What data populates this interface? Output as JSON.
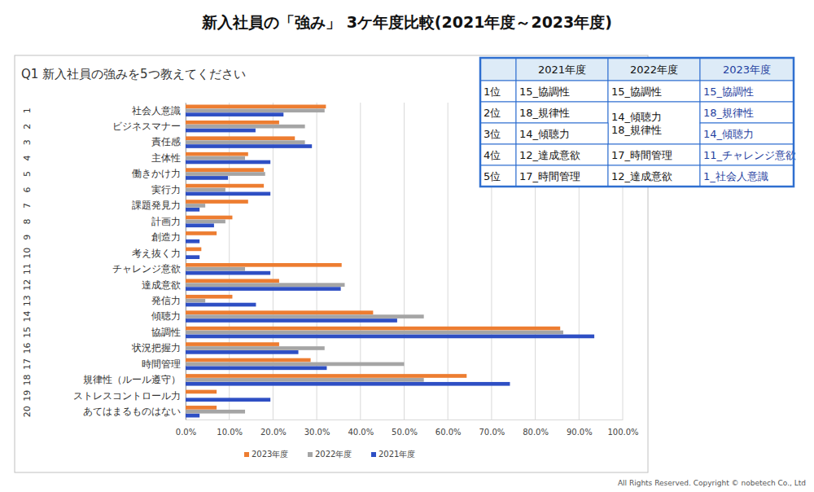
{
  "chart_data": {
    "type": "bar",
    "title": "新入社員の「強み」 3ケ年度比較(2021年度～2023年度)",
    "subtitle": "Q1 新入社員の強みを5つ教えてください",
    "orientation": "horizontal",
    "category_numbers": [
      1,
      2,
      3,
      4,
      5,
      6,
      7,
      8,
      9,
      10,
      11,
      12,
      13,
      14,
      15,
      16,
      17,
      18,
      19,
      20
    ],
    "categories": [
      "社会人意識",
      "ビジネスマナー",
      "責任感",
      "主体性",
      "働きかけ力",
      "実行力",
      "課題発見力",
      "計画力",
      "創造力",
      "考え抜く力",
      "チャレンジ意欲",
      "達成意欲",
      "発信力",
      "傾聴力",
      "協調性",
      "状況把握力",
      "時間管理",
      "規律性（ルール遵守）",
      "ストレスコントロール力",
      "あてはまるものはない"
    ],
    "series": [
      {
        "name": "2023年度",
        "color": "#ED7D31",
        "values": [
          32.1,
          21.4,
          25.0,
          14.3,
          17.9,
          17.9,
          14.3,
          10.7,
          7.1,
          3.6,
          35.7,
          21.4,
          10.7,
          42.9,
          85.7,
          21.4,
          28.6,
          64.3,
          7.1,
          7.1
        ]
      },
      {
        "name": "2022年度",
        "color": "#A5A5A5",
        "values": [
          31.8,
          27.3,
          27.3,
          13.6,
          18.2,
          9.1,
          4.5,
          9.1,
          0,
          0,
          13.6,
          36.4,
          4.5,
          54.5,
          86.4,
          31.8,
          50.0,
          54.5,
          0,
          13.6
        ]
      },
      {
        "name": "2021年度",
        "color": "#2E4FC4",
        "values": [
          22.4,
          16.0,
          28.9,
          19.4,
          9.7,
          19.4,
          3.2,
          6.5,
          3.2,
          3.2,
          19.4,
          35.5,
          16.1,
          48.4,
          93.5,
          25.8,
          32.3,
          74.2,
          19.4,
          3.2
        ]
      }
    ],
    "xlim": [
      0,
      100
    ],
    "xticks": [
      {
        "value": 0,
        "label": "0.0%"
      },
      {
        "value": 10,
        "label": "10.0%"
      },
      {
        "value": 20,
        "label": "20.0%"
      },
      {
        "value": 30,
        "label": "30.0%"
      },
      {
        "value": 40,
        "label": "40.0%"
      },
      {
        "value": 50,
        "label": "50.0%"
      },
      {
        "value": 60,
        "label": "60.0%"
      },
      {
        "value": 70,
        "label": "70.0%"
      },
      {
        "value": 80,
        "label": "80.0%"
      },
      {
        "value": 90,
        "label": "90.0%"
      },
      {
        "value": 100,
        "label": "100.0%"
      }
    ],
    "grid": true,
    "legend": "bottom",
    "data_labels": false
  },
  "table": {
    "header": [
      "2021年度",
      "2022年度",
      "2023年度"
    ],
    "rows": [
      {
        "rank": "1位",
        "cells": [
          "15_協調性",
          "15_協調性",
          "15_協調性"
        ]
      },
      {
        "rank": "2位",
        "cells": [
          "18_規律性",
          {
            "lines": [
              "14_傾聴力",
              "18_規律性"
            ],
            "rowspan": 2
          },
          "18_規律性"
        ]
      },
      {
        "rank": "3位",
        "cells": [
          "14_傾聴力",
          null,
          "14_傾聴力"
        ]
      },
      {
        "rank": "4位",
        "cells": [
          "12_達成意欲",
          "17_時間管理",
          "11_チャレンジ意欲"
        ]
      },
      {
        "rank": "5位",
        "cells": [
          "17_時間管理",
          "12_達成意欲",
          "1_社会人意識"
        ]
      }
    ]
  },
  "footer": "All Rights Reserved. Copyright © nobetech Co., Ltd"
}
